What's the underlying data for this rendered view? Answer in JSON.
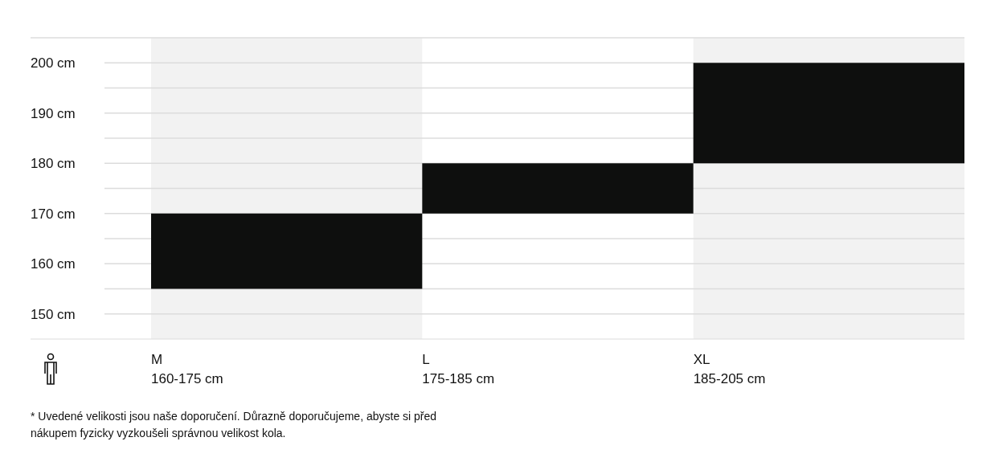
{
  "chart_data": {
    "type": "bar",
    "categories": [
      "M\n160-175 cm",
      "L\n175-185 cm",
      "XL\n185-205 cm"
    ],
    "base": [
      155,
      170,
      180
    ],
    "values": [
      15,
      10,
      20
    ],
    "color": "#0e0f0e",
    "ylim": [
      145,
      205
    ],
    "yticks": [
      {
        "value": 150,
        "label": "150 cm"
      },
      {
        "value": 155,
        "label": null
      },
      {
        "value": 160,
        "label": "160 cm"
      },
      {
        "value": 165,
        "label": null
      },
      {
        "value": 170,
        "label": "170 cm"
      },
      {
        "value": 175,
        "label": null
      },
      {
        "value": 180,
        "label": "180 cm"
      },
      {
        "value": 185,
        "label": null
      },
      {
        "value": 190,
        "label": "190 cm"
      },
      {
        "value": 195,
        "label": null
      },
      {
        "value": 200,
        "label": "200 cm"
      },
      {
        "value": 205,
        "label": null
      }
    ],
    "grid": true,
    "annotations": [
      "* Uvedené velikosti jsou naše doporučení. Důrazně doporučujeme, abyste si před nákupem fyzicky vyzkoušeli správnou velikost kola."
    ]
  }
}
